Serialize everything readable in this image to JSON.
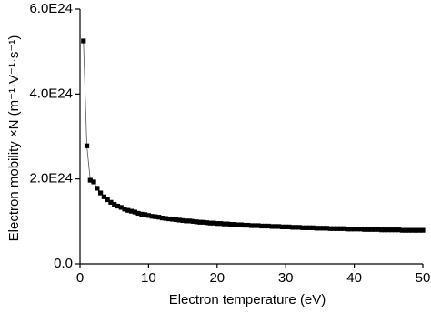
{
  "chart_data": {
    "type": "line",
    "x_label": "Electron temperature (eV)",
    "y_label": "Electron mobility ×N (m⁻¹·V⁻¹·s⁻¹)",
    "xlim": [
      0,
      50
    ],
    "xticks": [
      0,
      10,
      20,
      30,
      40,
      50
    ],
    "ylim": [
      0,
      6e+24
    ],
    "yticks": [
      {
        "value": 0,
        "label": "0.0"
      },
      {
        "value": 2e+24,
        "label": "2.0E24"
      },
      {
        "value": 4e+24,
        "label": "4.0E24"
      },
      {
        "value": 6e+24,
        "label": "6.0E24"
      }
    ],
    "x": [
      0.5,
      1,
      1.5,
      2,
      2.5,
      3,
      3.5,
      4,
      4.5,
      5,
      5.5,
      6,
      6.5,
      7,
      7.5,
      8,
      8.5,
      9,
      9.5,
      10,
      10.5,
      11,
      11.5,
      12,
      12.5,
      13,
      13.5,
      14,
      14.5,
      15,
      15.5,
      16,
      16.5,
      17,
      17.5,
      18,
      18.5,
      19,
      19.5,
      20,
      20.5,
      21,
      21.5,
      22,
      22.5,
      23,
      23.5,
      24,
      24.5,
      25,
      25.5,
      26,
      26.5,
      27,
      27.5,
      28,
      28.5,
      29,
      29.5,
      30,
      30.5,
      31,
      31.5,
      32,
      32.5,
      33,
      33.5,
      34,
      34.5,
      35,
      35.5,
      36,
      36.5,
      37,
      37.5,
      38,
      38.5,
      39,
      39.5,
      40,
      40.5,
      41,
      41.5,
      42,
      42.5,
      43,
      43.5,
      44,
      44.5,
      45,
      45.5,
      46,
      46.5,
      47,
      47.5,
      48,
      48.5,
      49,
      49.5,
      50
    ],
    "series": [
      {
        "color": "#000000",
        "values": [
          5.25e+24,
          2.78e+24,
          1.97e+24,
          1.93e+24,
          1.78e+24,
          1.67e+24,
          1.58e+24,
          1.51e+24,
          1.45e+24,
          1.4e+24,
          1.36e+24,
          1.33e+24,
          1.29e+24,
          1.26e+24,
          1.24e+24,
          1.22e+24,
          1.19e+24,
          1.17e+24,
          1.16e+24,
          1.14e+24,
          1.12e+24,
          1.11e+24,
          1.1e+24,
          1.08e+24,
          1.07e+24,
          1.06e+24,
          1.05e+24,
          1.04e+24,
          1.03e+24,
          1.02e+24,
          1.01e+24,
          1.01e+24,
          1e+24,
          9.9e+23,
          9.8e+23,
          9.8e+23,
          9.7e+23,
          9.6e+23,
          9.6e+23,
          9.5e+23,
          9.5e+23,
          9.4e+23,
          9.4e+23,
          9.3e+23,
          9.3e+23,
          9.2e+23,
          9.2e+23,
          9.1e+23,
          9.1e+23,
          9e+23,
          9e+23,
          9e+23,
          8.9e+23,
          8.9e+23,
          8.9e+23,
          8.8e+23,
          8.8e+23,
          8.8e+23,
          8.7e+23,
          8.7e+23,
          8.7e+23,
          8.6e+23,
          8.6e+23,
          8.6e+23,
          8.5e+23,
          8.5e+23,
          8.5e+23,
          8.5e+23,
          8.4e+23,
          8.4e+23,
          8.4e+23,
          8.4e+23,
          8.3e+23,
          8.3e+23,
          8.3e+23,
          8.3e+23,
          8.3e+23,
          8.2e+23,
          8.2e+23,
          8.2e+23,
          8.2e+23,
          8.2e+23,
          8.1e+23,
          8.1e+23,
          8.1e+23,
          8.1e+23,
          8.1e+23,
          8e+23,
          8e+23,
          8e+23,
          8e+23,
          8e+23,
          8e+23,
          7.9e+23,
          7.9e+23,
          7.9e+23,
          7.9e+23,
          7.9e+23,
          7.9e+23,
          7.9e+23
        ]
      }
    ]
  }
}
